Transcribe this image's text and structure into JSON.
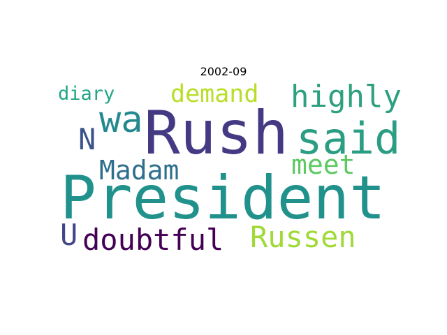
{
  "title": "2002-09",
  "words": [
    {
      "text": "President",
      "color": "#21918c"
    },
    {
      "text": "Rush",
      "color": "#443983"
    },
    {
      "text": "said",
      "color": "#2a9d83"
    },
    {
      "text": "wa",
      "color": "#23898e"
    },
    {
      "text": "highly",
      "color": "#2ca07f"
    },
    {
      "text": "doubtful",
      "color": "#440154"
    },
    {
      "text": "Russen",
      "color": "#a0da39"
    },
    {
      "text": "Madam",
      "color": "#2e6f8e"
    },
    {
      "text": "meet",
      "color": "#5ec962"
    },
    {
      "text": "demand",
      "color": "#b8de29"
    },
    {
      "text": "diary",
      "color": "#21a685"
    },
    {
      "text": "N",
      "color": "#3b528b"
    },
    {
      "text": "U",
      "color": "#404688"
    }
  ]
}
